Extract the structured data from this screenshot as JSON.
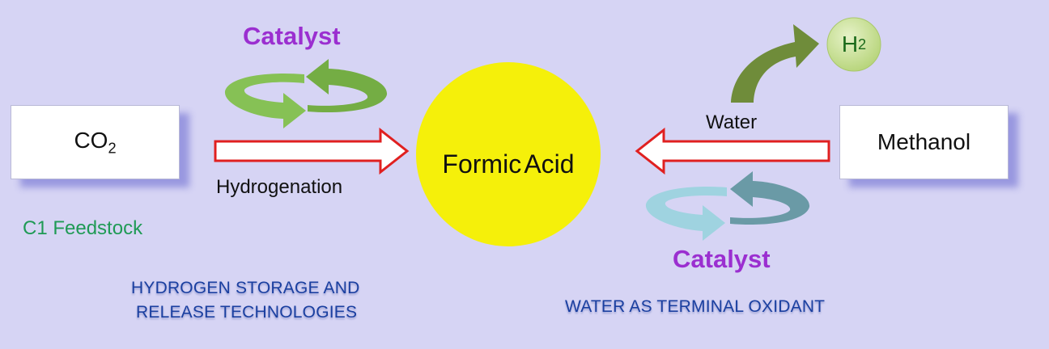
{
  "nodes": {
    "co2": {
      "main": "CO",
      "sub": "2"
    },
    "methanol": "Methanol",
    "formic_acid": "Formic Acid",
    "h2": {
      "main": "H",
      "sub": "2"
    }
  },
  "labels": {
    "catalyst_left": "Catalyst",
    "catalyst_right": "Catalyst",
    "hydrogenation": "Hydrogenation",
    "water": "Water",
    "c1_feedstock": "C1 Feedstock",
    "hydrogen_storage_line1": "HYDROGEN STORAGE AND",
    "hydrogen_storage_line2": "RELEASE TECHNOLOGIES",
    "water_oxidant": "WATER AS TERMINAL OXIDANT"
  },
  "colors": {
    "background": "#d6d4f4",
    "formic_circle": "#f5f00a",
    "arrow_outline": "#e02020",
    "catalyst_text": "#9b2fd0",
    "feedstock_text": "#1f9a55",
    "caption_text": "#1a3fa0",
    "green_cycle": "#7ab648",
    "blue_cycle": "#6a9aa6",
    "h2_circle": "#cfe3a8",
    "h2_arrow": "#6f8c3a"
  }
}
